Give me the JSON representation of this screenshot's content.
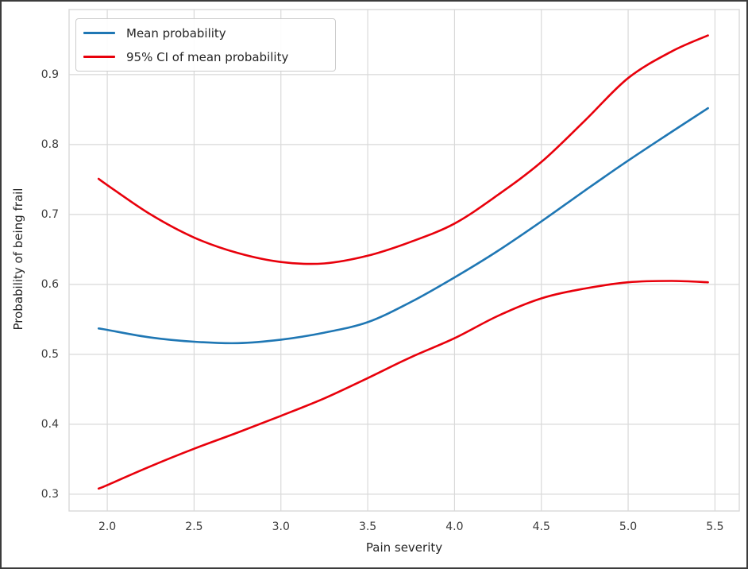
{
  "figure": {
    "xlabel": "Pain severity",
    "ylabel": "Probability of being frail"
  },
  "legend": {
    "position": "upper left",
    "items": [
      {
        "label": "Mean probability",
        "color": "#1f77b4"
      },
      {
        "label": "95% CI of mean probability",
        "color": "#e8000b"
      }
    ]
  },
  "colors": {
    "grid": "#d9d9d9",
    "spine": "#d9d9d9",
    "tick_label": "#3b3b3b",
    "mean_line": "#1f77b4",
    "ci_line": "#e8000b",
    "background": "#ffffff"
  },
  "chart_data": {
    "type": "line",
    "title": "",
    "xlabel": "Pain severity",
    "ylabel": "Probability of being frail",
    "grid": true,
    "legend_position": "upper left",
    "xlim": [
      1.78,
      5.64
    ],
    "ylim": [
      0.276,
      0.993
    ],
    "x_ticks": [
      2.0,
      2.5,
      3.0,
      3.5,
      4.0,
      4.5,
      5.0,
      5.5
    ],
    "y_ticks": [
      0.3,
      0.4,
      0.5,
      0.6,
      0.7,
      0.8,
      0.9
    ],
    "x": [
      1.95,
      2.0,
      2.25,
      2.5,
      2.75,
      3.0,
      3.25,
      3.5,
      3.75,
      4.0,
      4.25,
      4.5,
      4.75,
      5.0,
      5.25,
      5.46
    ],
    "series": [
      {
        "name": "Mean probability",
        "color": "#1f77b4",
        "values": [
          0.537,
          0.535,
          0.524,
          0.518,
          0.516,
          0.521,
          0.531,
          0.546,
          0.575,
          0.61,
          0.648,
          0.69,
          0.734,
          0.777,
          0.818,
          0.852
        ]
      },
      {
        "name": "95% CI upper bound",
        "color": "#e8000b",
        "values": [
          0.751,
          0.742,
          0.7,
          0.667,
          0.645,
          0.632,
          0.63,
          0.641,
          0.661,
          0.687,
          0.728,
          0.775,
          0.834,
          0.895,
          0.933,
          0.956
        ]
      },
      {
        "name": "95% CI lower bound",
        "color": "#e8000b",
        "values": [
          0.308,
          0.313,
          0.34,
          0.365,
          0.388,
          0.412,
          0.437,
          0.466,
          0.496,
          0.523,
          0.555,
          0.58,
          0.594,
          0.603,
          0.605,
          0.603
        ]
      }
    ]
  }
}
